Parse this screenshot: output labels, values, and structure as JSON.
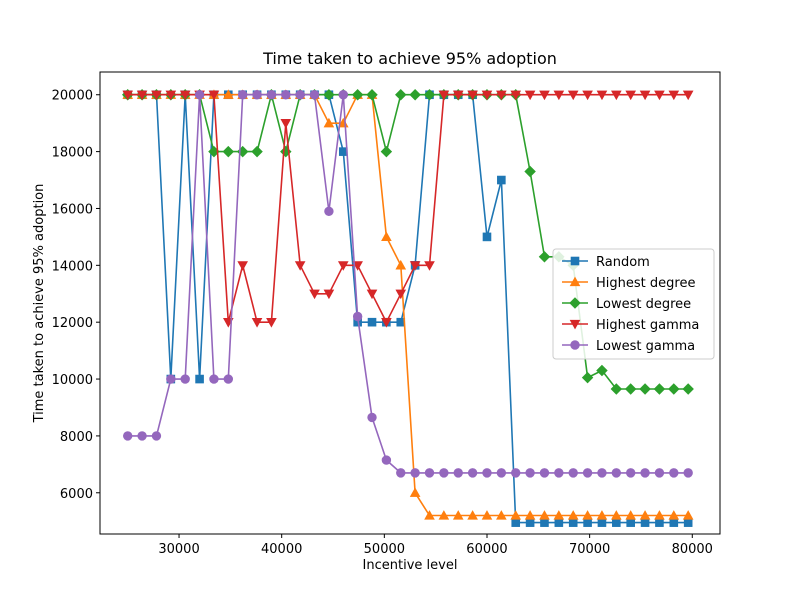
{
  "chart_data": {
    "type": "line",
    "title": "Time taken to achieve 95% adoption",
    "xlabel": "Incentive level",
    "ylabel": "Time taken to achieve 95% adoption",
    "xlim": [
      22300,
      82700
    ],
    "ylim": [
      4550,
      20800
    ],
    "xticks": [
      30000,
      40000,
      50000,
      60000,
      70000,
      80000
    ],
    "yticks": [
      6000,
      8000,
      10000,
      12000,
      14000,
      16000,
      18000,
      20000
    ],
    "grid": false,
    "legend_position": "center-right",
    "x": [
      25000,
      26400,
      27800,
      29200,
      30600,
      32000,
      33400,
      34800,
      36200,
      37600,
      39000,
      40400,
      41800,
      43200,
      44600,
      46000,
      47400,
      48800,
      50200,
      51600,
      53000,
      54400,
      55800,
      57200,
      58600,
      60000,
      61400,
      62800,
      64200,
      65600,
      67000,
      68400,
      69800,
      71200,
      72600,
      74000,
      75400,
      76800,
      78200,
      79600
    ],
    "series": [
      {
        "name": "Random",
        "color": "#1f77b4",
        "marker": "square",
        "values": [
          20000,
          20000,
          20000,
          10000,
          20000,
          10000,
          20000,
          20000,
          20000,
          20000,
          20000,
          20000,
          20000,
          20000,
          20000,
          18000,
          12000,
          12000,
          12000,
          12000,
          14000,
          20000,
          20000,
          20000,
          20000,
          15000,
          17000,
          4950,
          4950,
          4950,
          4950,
          4950,
          4950,
          4950,
          4950,
          4950,
          4950,
          4950,
          4950,
          4950
        ]
      },
      {
        "name": "Highest degree",
        "color": "#ff7f0e",
        "marker": "triangle-up",
        "values": [
          20000,
          20000,
          20000,
          20000,
          20000,
          20000,
          20000,
          20000,
          20000,
          20000,
          20000,
          20000,
          20000,
          20000,
          19000,
          19000,
          20000,
          20000,
          15000,
          14000,
          6000,
          5200,
          5200,
          5200,
          5200,
          5200,
          5200,
          5200,
          5200,
          5200,
          5200,
          5200,
          5200,
          5200,
          5200,
          5200,
          5200,
          5200,
          5200,
          5200
        ]
      },
      {
        "name": "Lowest degree",
        "color": "#2ca02c",
        "marker": "diamond",
        "values": [
          20000,
          20000,
          20000,
          20000,
          20000,
          20000,
          18000,
          18000,
          18000,
          18000,
          20000,
          18000,
          20000,
          20000,
          20000,
          20000,
          20000,
          20000,
          18000,
          20000,
          20000,
          20000,
          20000,
          20000,
          20000,
          20000,
          20000,
          20000,
          17300,
          14300,
          14300,
          14000,
          10050,
          10300,
          9650,
          9650,
          9650,
          9650,
          9650,
          9650
        ]
      },
      {
        "name": "Highest gamma",
        "color": "#d62728",
        "marker": "triangle-down",
        "values": [
          20000,
          20000,
          20000,
          20000,
          20000,
          20000,
          20000,
          12000,
          14000,
          12000,
          12000,
          19000,
          14000,
          13000,
          13000,
          14000,
          14000,
          13000,
          12000,
          13000,
          14000,
          14000,
          20000,
          20000,
          20000,
          20000,
          20000,
          20000,
          20000,
          20000,
          20000,
          20000,
          20000,
          20000,
          20000,
          20000,
          20000,
          20000,
          20000,
          20000
        ]
      },
      {
        "name": "Lowest gamma",
        "color": "#9467bd",
        "marker": "circle",
        "values": [
          8000,
          8000,
          8000,
          10000,
          10000,
          20000,
          10000,
          10000,
          20000,
          20000,
          20000,
          20000,
          20000,
          20000,
          15900,
          20000,
          12200,
          8650,
          7150,
          6700,
          6700,
          6700,
          6700,
          6700,
          6700,
          6700,
          6700,
          6700,
          6700,
          6700,
          6700,
          6700,
          6700,
          6700,
          6700,
          6700,
          6700,
          6700,
          6700,
          6700
        ]
      }
    ]
  }
}
